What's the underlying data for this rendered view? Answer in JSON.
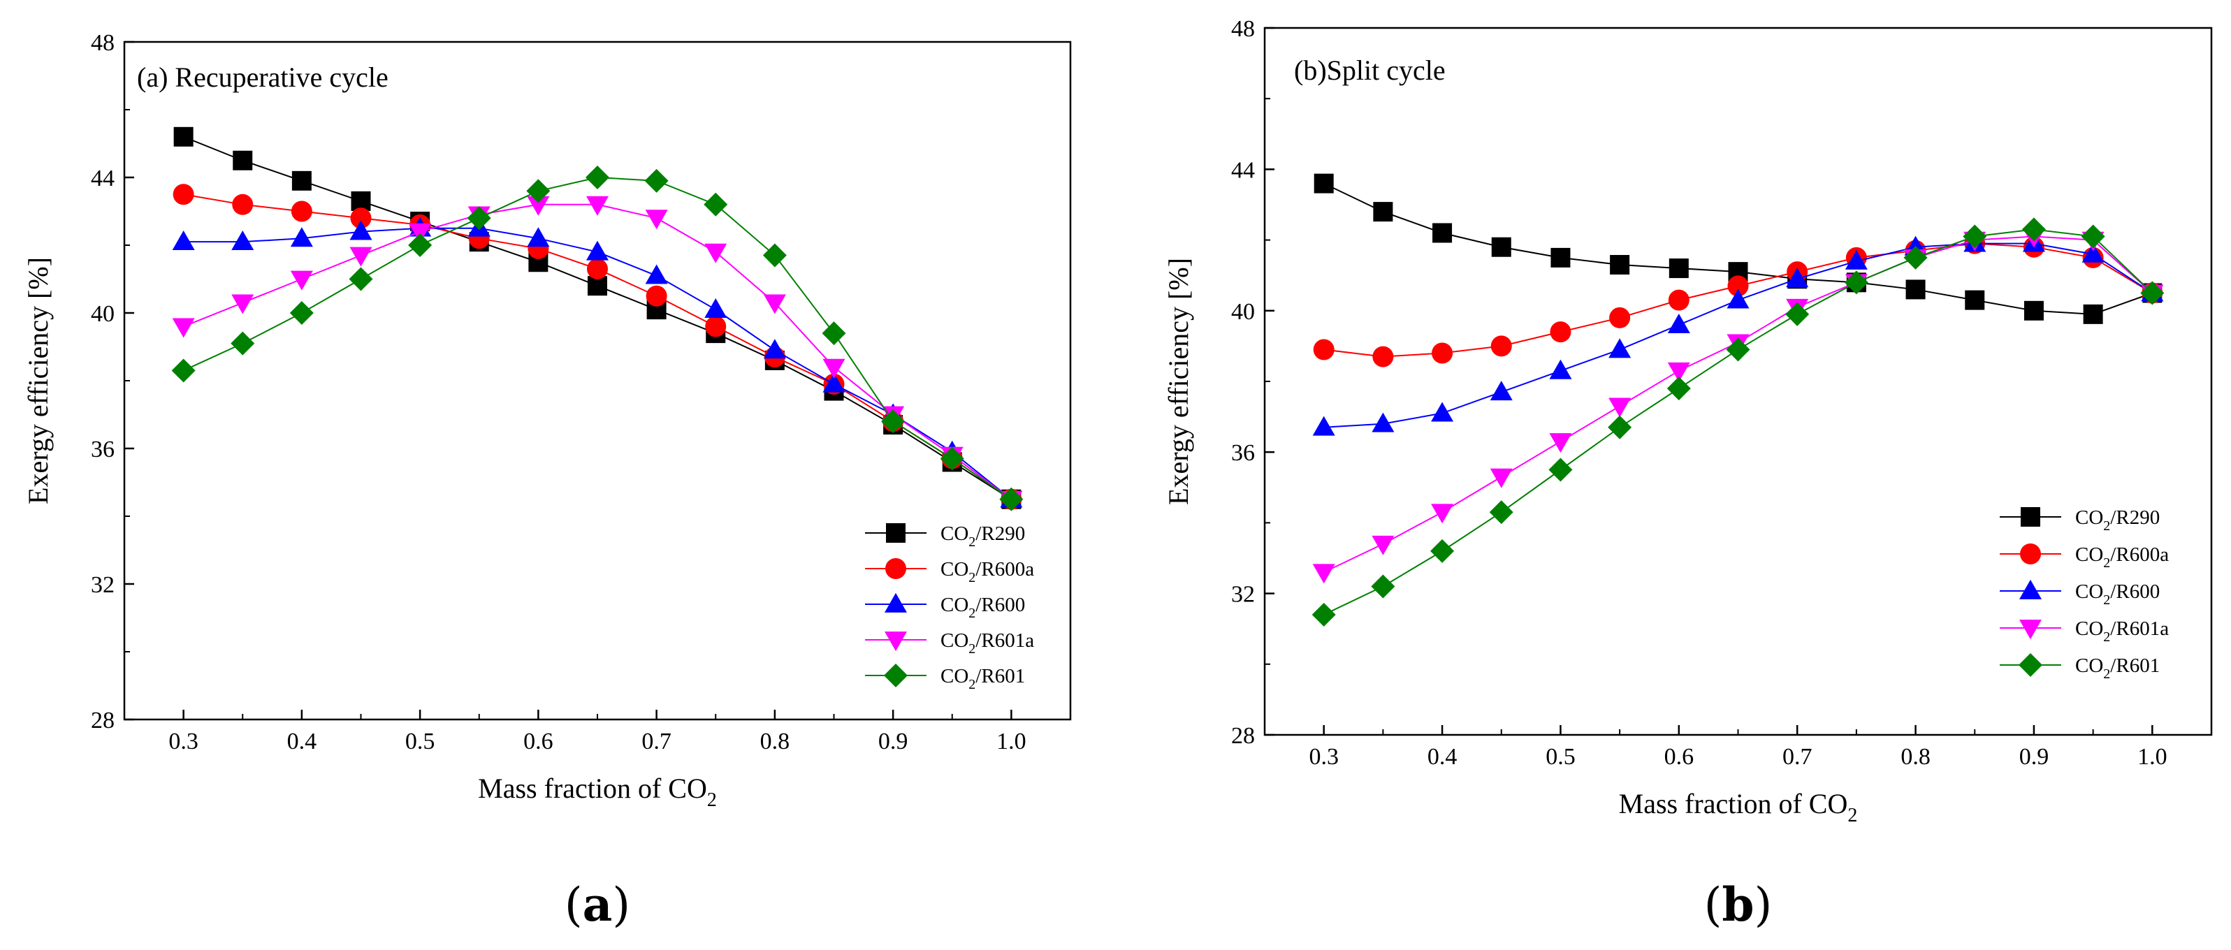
{
  "chart_data": [
    {
      "type": "line",
      "panel_id": "a",
      "title": "(a) Recuperative cycle",
      "caption": {
        "open": "(",
        "letter": "a",
        "close": ")"
      },
      "xlabel": {
        "text": "Mass fraction of CO",
        "sub": "2"
      },
      "ylabel": "Exergy efficiency [%]",
      "xlim": [
        0.25,
        1.05
      ],
      "ylim": [
        28,
        48
      ],
      "xticks": [
        0.3,
        0.4,
        0.5,
        0.6,
        0.7,
        0.8,
        0.9,
        1.0
      ],
      "xtick_labels": [
        "0.3",
        "0.4",
        "0.5",
        "0.6",
        "0.7",
        "0.8",
        "0.9",
        "1.0"
      ],
      "yticks": [
        28,
        32,
        36,
        40,
        44,
        48
      ],
      "ytick_labels": [
        "28",
        "32",
        "36",
        "40",
        "44",
        "48"
      ],
      "grid": false,
      "legend_position": "lower-right",
      "x": [
        0.3,
        0.35,
        0.4,
        0.45,
        0.5,
        0.55,
        0.6,
        0.65,
        0.7,
        0.75,
        0.8,
        0.85,
        0.9,
        0.95,
        1.0
      ],
      "series": [
        {
          "name": "CO2/R290",
          "label_parts": [
            "CO",
            "2",
            "/R290"
          ],
          "marker": "square",
          "color": "#000000",
          "values": [
            45.2,
            44.5,
            43.9,
            43.3,
            42.7,
            42.1,
            41.5,
            40.8,
            40.1,
            39.4,
            38.6,
            37.7,
            36.7,
            35.6,
            34.5
          ]
        },
        {
          "name": "CO2/R600a",
          "label_parts": [
            "CO",
            "2",
            "/R600a"
          ],
          "marker": "circle",
          "color": "#ff0000",
          "values": [
            43.5,
            43.2,
            43.0,
            42.8,
            42.6,
            42.2,
            41.9,
            41.3,
            40.5,
            39.6,
            38.7,
            37.9,
            36.8,
            35.7,
            34.5
          ]
        },
        {
          "name": "CO2/R600",
          "label_parts": [
            "CO",
            "2",
            "/R600"
          ],
          "marker": "triangle-up",
          "color": "#0000ff",
          "values": [
            42.1,
            42.1,
            42.2,
            42.4,
            42.5,
            42.5,
            42.2,
            41.8,
            41.1,
            40.1,
            38.9,
            37.9,
            37.0,
            35.9,
            34.5
          ]
        },
        {
          "name": "CO2/R601a",
          "label_parts": [
            "CO",
            "2",
            "/R601a"
          ],
          "marker": "triangle-down",
          "color": "#ff00ff",
          "values": [
            39.6,
            40.3,
            41.0,
            41.7,
            42.4,
            42.9,
            43.2,
            43.2,
            42.8,
            41.8,
            40.3,
            38.4,
            37.0,
            35.8,
            34.5
          ]
        },
        {
          "name": "CO2/R601",
          "label_parts": [
            "CO",
            "2",
            "/R601"
          ],
          "marker": "diamond",
          "color": "#008000",
          "values": [
            38.3,
            39.1,
            40.0,
            41.0,
            42.0,
            42.8,
            43.6,
            44.0,
            43.9,
            43.2,
            41.7,
            39.4,
            36.8,
            35.7,
            34.5
          ]
        }
      ]
    },
    {
      "type": "line",
      "panel_id": "b",
      "title": "(b)Split cycle",
      "caption": {
        "open": "(",
        "letter": "b",
        "close": ")"
      },
      "xlabel": {
        "text": "Mass fraction of CO",
        "sub": "2"
      },
      "ylabel": "Exergy efficiency [%]",
      "xlim": [
        0.25,
        1.05
      ],
      "ylim": [
        28,
        48
      ],
      "xticks": [
        0.3,
        0.4,
        0.5,
        0.6,
        0.7,
        0.8,
        0.9,
        1.0
      ],
      "xtick_labels": [
        "0.3",
        "0.4",
        "0.5",
        "0.6",
        "0.7",
        "0.8",
        "0.9",
        "1.0"
      ],
      "yticks": [
        28,
        32,
        36,
        40,
        44,
        48
      ],
      "ytick_labels": [
        "28",
        "32",
        "36",
        "40",
        "44",
        "48"
      ],
      "grid": false,
      "legend_position": "lower-right",
      "x": [
        0.3,
        0.35,
        0.4,
        0.45,
        0.5,
        0.55,
        0.6,
        0.65,
        0.7,
        0.75,
        0.8,
        0.85,
        0.9,
        0.95,
        1.0
      ],
      "series": [
        {
          "name": "CO2/R290",
          "label_parts": [
            "CO",
            "2",
            "/R290"
          ],
          "marker": "square",
          "color": "#000000",
          "values": [
            43.6,
            42.8,
            42.2,
            41.8,
            41.5,
            41.3,
            41.2,
            41.1,
            40.9,
            40.8,
            40.6,
            40.3,
            40.0,
            39.9,
            40.5
          ]
        },
        {
          "name": "CO2/R600a",
          "label_parts": [
            "CO",
            "2",
            "/R600a"
          ],
          "marker": "circle",
          "color": "#ff0000",
          "values": [
            38.9,
            38.7,
            38.8,
            39.0,
            39.4,
            39.8,
            40.3,
            40.7,
            41.1,
            41.5,
            41.7,
            41.9,
            41.8,
            41.5,
            40.5
          ]
        },
        {
          "name": "CO2/R600",
          "label_parts": [
            "CO",
            "2",
            "/R600"
          ],
          "marker": "triangle-up",
          "color": "#0000ff",
          "values": [
            36.7,
            36.8,
            37.1,
            37.7,
            38.3,
            38.9,
            39.6,
            40.3,
            40.9,
            41.4,
            41.8,
            41.9,
            41.9,
            41.6,
            40.5
          ]
        },
        {
          "name": "CO2/R601a",
          "label_parts": [
            "CO",
            "2",
            "/R601a"
          ],
          "marker": "triangle-down",
          "color": "#ff00ff",
          "values": [
            32.6,
            33.4,
            34.3,
            35.3,
            36.3,
            37.3,
            38.3,
            39.1,
            40.1,
            40.8,
            41.5,
            42.0,
            42.1,
            42.0,
            40.5
          ]
        },
        {
          "name": "CO2/R601",
          "label_parts": [
            "CO",
            "2",
            "/R601"
          ],
          "marker": "diamond",
          "color": "#008000",
          "values": [
            31.4,
            32.2,
            33.2,
            34.3,
            35.5,
            36.7,
            37.8,
            38.9,
            39.9,
            40.8,
            41.5,
            42.1,
            42.3,
            42.1,
            40.5
          ]
        }
      ]
    }
  ]
}
